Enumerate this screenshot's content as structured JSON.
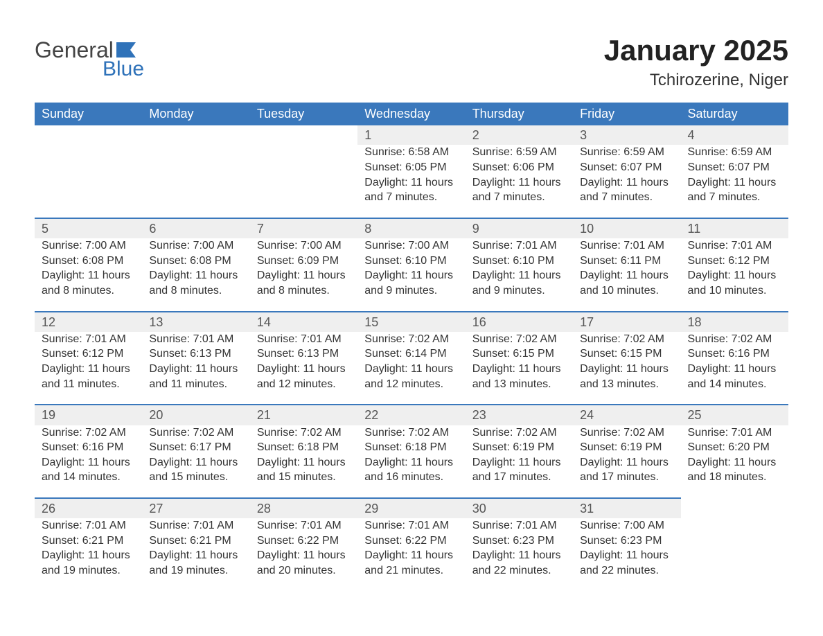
{
  "logo": {
    "word1": "General",
    "word2": "Blue",
    "text_color": "#444444",
    "accent_color": "#2f72b9"
  },
  "title": "January 2025",
  "location": "Tchirozerine, Niger",
  "header_bg": "#3a78bc",
  "header_text_color": "#ffffff",
  "daynum_bg": "#efefef",
  "day_border_color": "#3a78bc",
  "page_bg": "#ffffff",
  "text_color": "#333333",
  "weekdays": [
    "Sunday",
    "Monday",
    "Tuesday",
    "Wednesday",
    "Thursday",
    "Friday",
    "Saturday"
  ],
  "weeks": [
    [
      null,
      null,
      null,
      {
        "n": "1",
        "sunrise": "6:58 AM",
        "sunset": "6:05 PM",
        "daylight_l1": "Daylight: 11 hours",
        "daylight_l2": "and 7 minutes."
      },
      {
        "n": "2",
        "sunrise": "6:59 AM",
        "sunset": "6:06 PM",
        "daylight_l1": "Daylight: 11 hours",
        "daylight_l2": "and 7 minutes."
      },
      {
        "n": "3",
        "sunrise": "6:59 AM",
        "sunset": "6:07 PM",
        "daylight_l1": "Daylight: 11 hours",
        "daylight_l2": "and 7 minutes."
      },
      {
        "n": "4",
        "sunrise": "6:59 AM",
        "sunset": "6:07 PM",
        "daylight_l1": "Daylight: 11 hours",
        "daylight_l2": "and 7 minutes."
      }
    ],
    [
      {
        "n": "5",
        "sunrise": "7:00 AM",
        "sunset": "6:08 PM",
        "daylight_l1": "Daylight: 11 hours",
        "daylight_l2": "and 8 minutes."
      },
      {
        "n": "6",
        "sunrise": "7:00 AM",
        "sunset": "6:08 PM",
        "daylight_l1": "Daylight: 11 hours",
        "daylight_l2": "and 8 minutes."
      },
      {
        "n": "7",
        "sunrise": "7:00 AM",
        "sunset": "6:09 PM",
        "daylight_l1": "Daylight: 11 hours",
        "daylight_l2": "and 8 minutes."
      },
      {
        "n": "8",
        "sunrise": "7:00 AM",
        "sunset": "6:10 PM",
        "daylight_l1": "Daylight: 11 hours",
        "daylight_l2": "and 9 minutes."
      },
      {
        "n": "9",
        "sunrise": "7:01 AM",
        "sunset": "6:10 PM",
        "daylight_l1": "Daylight: 11 hours",
        "daylight_l2": "and 9 minutes."
      },
      {
        "n": "10",
        "sunrise": "7:01 AM",
        "sunset": "6:11 PM",
        "daylight_l1": "Daylight: 11 hours",
        "daylight_l2": "and 10 minutes."
      },
      {
        "n": "11",
        "sunrise": "7:01 AM",
        "sunset": "6:12 PM",
        "daylight_l1": "Daylight: 11 hours",
        "daylight_l2": "and 10 minutes."
      }
    ],
    [
      {
        "n": "12",
        "sunrise": "7:01 AM",
        "sunset": "6:12 PM",
        "daylight_l1": "Daylight: 11 hours",
        "daylight_l2": "and 11 minutes."
      },
      {
        "n": "13",
        "sunrise": "7:01 AM",
        "sunset": "6:13 PM",
        "daylight_l1": "Daylight: 11 hours",
        "daylight_l2": "and 11 minutes."
      },
      {
        "n": "14",
        "sunrise": "7:01 AM",
        "sunset": "6:13 PM",
        "daylight_l1": "Daylight: 11 hours",
        "daylight_l2": "and 12 minutes."
      },
      {
        "n": "15",
        "sunrise": "7:02 AM",
        "sunset": "6:14 PM",
        "daylight_l1": "Daylight: 11 hours",
        "daylight_l2": "and 12 minutes."
      },
      {
        "n": "16",
        "sunrise": "7:02 AM",
        "sunset": "6:15 PM",
        "daylight_l1": "Daylight: 11 hours",
        "daylight_l2": "and 13 minutes."
      },
      {
        "n": "17",
        "sunrise": "7:02 AM",
        "sunset": "6:15 PM",
        "daylight_l1": "Daylight: 11 hours",
        "daylight_l2": "and 13 minutes."
      },
      {
        "n": "18",
        "sunrise": "7:02 AM",
        "sunset": "6:16 PM",
        "daylight_l1": "Daylight: 11 hours",
        "daylight_l2": "and 14 minutes."
      }
    ],
    [
      {
        "n": "19",
        "sunrise": "7:02 AM",
        "sunset": "6:16 PM",
        "daylight_l1": "Daylight: 11 hours",
        "daylight_l2": "and 14 minutes."
      },
      {
        "n": "20",
        "sunrise": "7:02 AM",
        "sunset": "6:17 PM",
        "daylight_l1": "Daylight: 11 hours",
        "daylight_l2": "and 15 minutes."
      },
      {
        "n": "21",
        "sunrise": "7:02 AM",
        "sunset": "6:18 PM",
        "daylight_l1": "Daylight: 11 hours",
        "daylight_l2": "and 15 minutes."
      },
      {
        "n": "22",
        "sunrise": "7:02 AM",
        "sunset": "6:18 PM",
        "daylight_l1": "Daylight: 11 hours",
        "daylight_l2": "and 16 minutes."
      },
      {
        "n": "23",
        "sunrise": "7:02 AM",
        "sunset": "6:19 PM",
        "daylight_l1": "Daylight: 11 hours",
        "daylight_l2": "and 17 minutes."
      },
      {
        "n": "24",
        "sunrise": "7:02 AM",
        "sunset": "6:19 PM",
        "daylight_l1": "Daylight: 11 hours",
        "daylight_l2": "and 17 minutes."
      },
      {
        "n": "25",
        "sunrise": "7:01 AM",
        "sunset": "6:20 PM",
        "daylight_l1": "Daylight: 11 hours",
        "daylight_l2": "and 18 minutes."
      }
    ],
    [
      {
        "n": "26",
        "sunrise": "7:01 AM",
        "sunset": "6:21 PM",
        "daylight_l1": "Daylight: 11 hours",
        "daylight_l2": "and 19 minutes."
      },
      {
        "n": "27",
        "sunrise": "7:01 AM",
        "sunset": "6:21 PM",
        "daylight_l1": "Daylight: 11 hours",
        "daylight_l2": "and 19 minutes."
      },
      {
        "n": "28",
        "sunrise": "7:01 AM",
        "sunset": "6:22 PM",
        "daylight_l1": "Daylight: 11 hours",
        "daylight_l2": "and 20 minutes."
      },
      {
        "n": "29",
        "sunrise": "7:01 AM",
        "sunset": "6:22 PM",
        "daylight_l1": "Daylight: 11 hours",
        "daylight_l2": "and 21 minutes."
      },
      {
        "n": "30",
        "sunrise": "7:01 AM",
        "sunset": "6:23 PM",
        "daylight_l1": "Daylight: 11 hours",
        "daylight_l2": "and 22 minutes."
      },
      {
        "n": "31",
        "sunrise": "7:00 AM",
        "sunset": "6:23 PM",
        "daylight_l1": "Daylight: 11 hours",
        "daylight_l2": "and 22 minutes."
      },
      null
    ]
  ],
  "labels": {
    "sunrise_prefix": "Sunrise: ",
    "sunset_prefix": "Sunset: "
  }
}
